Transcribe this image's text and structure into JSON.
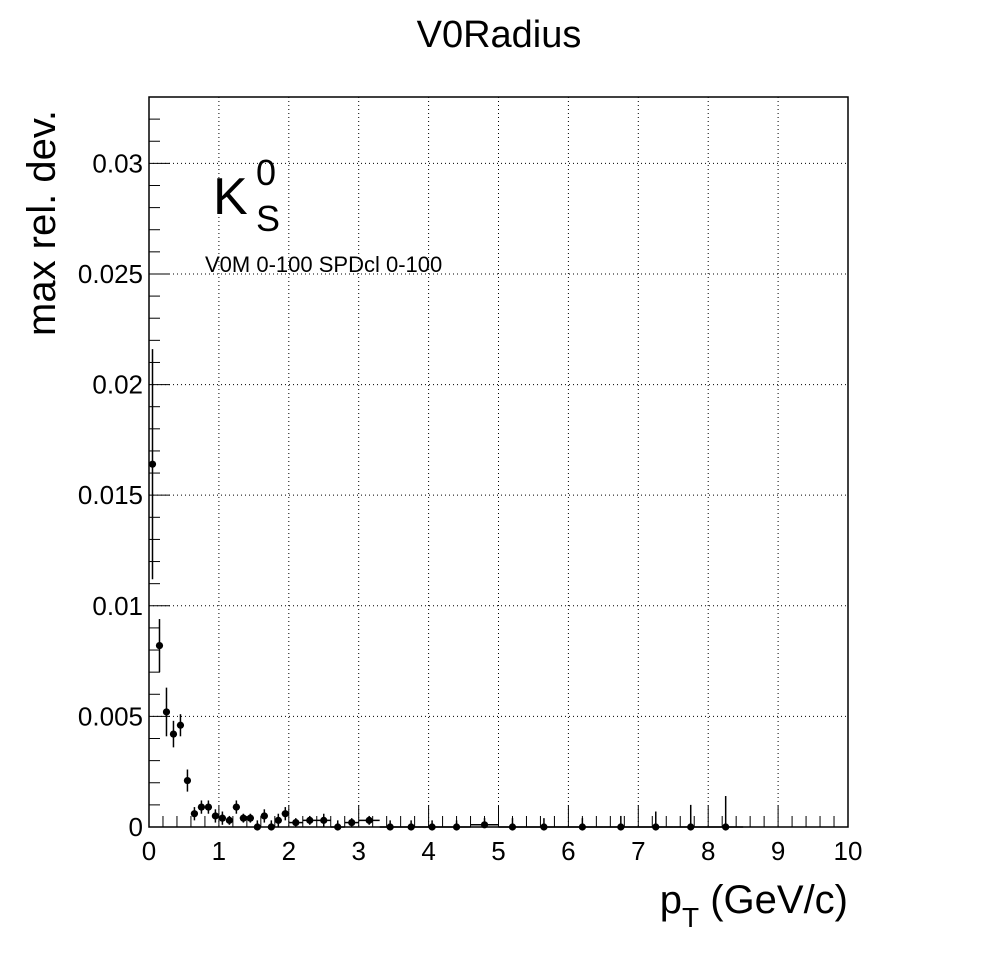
{
  "chart_data": {
    "type": "scatter",
    "title": "V0Radius",
    "xlabel": {
      "main": "p",
      "sub": "T",
      "unit": " (GeV/c)"
    },
    "ylabel": "max rel. dev.",
    "xlim": [
      0,
      10
    ],
    "ylim": [
      0,
      0.033
    ],
    "grid": true,
    "x_ticks": [
      "0",
      "1",
      "2",
      "3",
      "4",
      "5",
      "6",
      "7",
      "8",
      "9",
      "10"
    ],
    "y_ticks": [
      {
        "value": 0,
        "label": "0"
      },
      {
        "value": 0.005,
        "label": "0.005"
      },
      {
        "value": 0.01,
        "label": "0.01"
      },
      {
        "value": 0.015,
        "label": "0.015"
      },
      {
        "value": 0.02,
        "label": "0.02"
      },
      {
        "value": 0.025,
        "label": "0.025"
      },
      {
        "value": 0.03,
        "label": "0.03"
      }
    ],
    "particle_label": {
      "base": "K",
      "sup": "0",
      "sub": "S"
    },
    "annotation": "V0M 0-100 SPDcl 0-100",
    "series": [
      {
        "points": [
          {
            "x": 0.05,
            "y": 0.0164,
            "yerr": 0.0052,
            "xerr": 0.05
          },
          {
            "x": 0.15,
            "y": 0.0082,
            "yerr": 0.0012,
            "xerr": 0.05
          },
          {
            "x": 0.25,
            "y": 0.0052,
            "yerr": 0.0011,
            "xerr": 0.05
          },
          {
            "x": 0.35,
            "y": 0.0042,
            "yerr": 0.0006,
            "xerr": 0.05
          },
          {
            "x": 0.45,
            "y": 0.0046,
            "yerr": 0.0005,
            "xerr": 0.05
          },
          {
            "x": 0.55,
            "y": 0.0021,
            "yerr": 0.0005,
            "xerr": 0.05
          },
          {
            "x": 0.65,
            "y": 0.0006,
            "yerr": 0.0003,
            "xerr": 0.05
          },
          {
            "x": 0.75,
            "y": 0.0009,
            "yerr": 0.0003,
            "xerr": 0.05
          },
          {
            "x": 0.85,
            "y": 0.0009,
            "yerr": 0.0003,
            "xerr": 0.05
          },
          {
            "x": 0.95,
            "y": 0.0005,
            "yerr": 0.0003,
            "xerr": 0.05
          },
          {
            "x": 1.05,
            "y": 0.0004,
            "yerr": 0.0003,
            "xerr": 0.05
          },
          {
            "x": 1.15,
            "y": 0.0003,
            "yerr": 0.0002,
            "xerr": 0.05
          },
          {
            "x": 1.25,
            "y": 0.0009,
            "yerr": 0.0003,
            "xerr": 0.05
          },
          {
            "x": 1.35,
            "y": 0.0004,
            "yerr": 0.0002,
            "xerr": 0.05
          },
          {
            "x": 1.45,
            "y": 0.0004,
            "yerr": 0.0002,
            "xerr": 0.05
          },
          {
            "x": 1.55,
            "y": 0.0,
            "yerr": 0.0003,
            "xerr": 0.05
          },
          {
            "x": 1.65,
            "y": 0.0005,
            "yerr": 0.0003,
            "xerr": 0.05
          },
          {
            "x": 1.75,
            "y": 0.0,
            "yerr": 0.0003,
            "xerr": 0.05
          },
          {
            "x": 1.85,
            "y": 0.0003,
            "yerr": 0.0003,
            "xerr": 0.05
          },
          {
            "x": 1.95,
            "y": 0.0006,
            "yerr": 0.0003,
            "xerr": 0.05
          },
          {
            "x": 2.1,
            "y": 0.0002,
            "yerr": 0.0002,
            "xerr": 0.1
          },
          {
            "x": 2.3,
            "y": 0.0003,
            "yerr": 0.0002,
            "xerr": 0.1
          },
          {
            "x": 2.5,
            "y": 0.0003,
            "yerr": 0.0003,
            "xerr": 0.1
          },
          {
            "x": 2.7,
            "y": 0.0,
            "yerr": 0.0003,
            "xerr": 0.1
          },
          {
            "x": 2.9,
            "y": 0.0002,
            "yerr": 0.0002,
            "xerr": 0.1
          },
          {
            "x": 3.15,
            "y": 0.0003,
            "yerr": 0.0002,
            "xerr": 0.15
          },
          {
            "x": 3.45,
            "y": 0.0,
            "yerr": 0.0003,
            "xerr": 0.15
          },
          {
            "x": 3.75,
            "y": 0.0,
            "yerr": 0.0003,
            "xerr": 0.15
          },
          {
            "x": 4.05,
            "y": 0.0,
            "yerr": 0.0003,
            "xerr": 0.15
          },
          {
            "x": 4.4,
            "y": 0.0,
            "yerr": 0.0003,
            "xerr": 0.2
          },
          {
            "x": 4.8,
            "y": 0.0001,
            "yerr": 0.0003,
            "xerr": 0.2
          },
          {
            "x": 5.2,
            "y": 0.0,
            "yerr": 0.0004,
            "xerr": 0.2
          },
          {
            "x": 5.65,
            "y": 0.0,
            "yerr": 0.0004,
            "xerr": 0.25
          },
          {
            "x": 6.2,
            "y": 0.0,
            "yerr": 0.0004,
            "xerr": 0.3
          },
          {
            "x": 6.75,
            "y": 0.0,
            "yerr": 0.0005,
            "xerr": 0.25
          },
          {
            "x": 7.25,
            "y": 0.0,
            "yerr": 0.0007,
            "xerr": 0.25
          },
          {
            "x": 7.75,
            "y": 0.0,
            "yerr": 0.001,
            "xerr": 0.25
          },
          {
            "x": 8.25,
            "y": 0.0,
            "yerr": 0.0014,
            "xerr": 0.25
          }
        ]
      }
    ]
  }
}
